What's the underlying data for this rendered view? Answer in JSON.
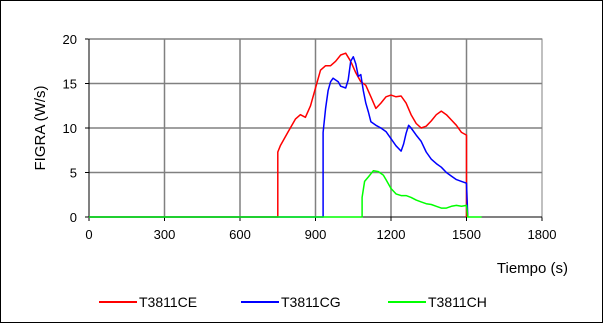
{
  "chart_data": {
    "type": "line",
    "xlabel": "Tiempo (s)",
    "ylabel": "FIGRA (W/s)",
    "xlim": [
      0,
      1800
    ],
    "ylim": [
      0,
      20
    ],
    "xticks": [
      0,
      300,
      600,
      900,
      1200,
      1500,
      1800
    ],
    "yticks": [
      0,
      5,
      10,
      15,
      20
    ],
    "grid": true,
    "legend_position": "bottom",
    "series": [
      {
        "name": "T3811CE",
        "color": "#ff0000",
        "x": [
          0,
          750,
          750,
          760,
          790,
          820,
          840,
          860,
          880,
          900,
          920,
          940,
          960,
          980,
          1000,
          1020,
          1040,
          1060,
          1080,
          1100,
          1120,
          1140,
          1160,
          1180,
          1200,
          1220,
          1240,
          1260,
          1280,
          1300,
          1320,
          1340,
          1360,
          1380,
          1400,
          1420,
          1440,
          1460,
          1480,
          1500,
          1500
        ],
        "y": [
          0,
          0,
          7.3,
          8,
          9.5,
          11,
          11.5,
          11.2,
          12.5,
          14.5,
          16.5,
          17,
          17,
          17.5,
          18.2,
          18.4,
          17.5,
          16.2,
          15.2,
          14.8,
          13.5,
          12.2,
          12.8,
          13.5,
          13.7,
          13.5,
          13.6,
          12.8,
          11.5,
          10.5,
          10,
          10.2,
          10.8,
          11.5,
          11.9,
          11.5,
          10.9,
          10.3,
          9.5,
          9.2,
          0
        ]
      },
      {
        "name": "T3811CG",
        "color": "#0000ff",
        "x": [
          0,
          930,
          930,
          940,
          950,
          960,
          970,
          990,
          1000,
          1020,
          1030,
          1040,
          1050,
          1060,
          1070,
          1080,
          1090,
          1100,
          1110,
          1120,
          1140,
          1160,
          1180,
          1200,
          1220,
          1240,
          1250,
          1260,
          1270,
          1280,
          1300,
          1320,
          1340,
          1360,
          1380,
          1400,
          1420,
          1440,
          1460,
          1480,
          1500,
          1505
        ],
        "y": [
          0,
          0,
          9.5,
          12.2,
          14.2,
          15.2,
          15.6,
          15.2,
          14.7,
          14.5,
          15.4,
          17.5,
          18,
          17.2,
          15.8,
          16,
          14.2,
          12.8,
          11.8,
          10.7,
          10.3,
          10,
          9.6,
          8.8,
          8,
          7.4,
          8.2,
          9.4,
          10.3,
          10,
          9.2,
          8.5,
          7.3,
          6.5,
          6,
          5.6,
          5,
          4.6,
          4.2,
          4,
          3.8,
          0
        ]
      },
      {
        "name": "T3811CH",
        "color": "#00ff00",
        "x": [
          0,
          1085,
          1085,
          1095,
          1110,
          1130,
          1150,
          1170,
          1180,
          1200,
          1220,
          1240,
          1260,
          1280,
          1300,
          1320,
          1340,
          1360,
          1380,
          1400,
          1420,
          1440,
          1460,
          1480,
          1500,
          1505,
          1560
        ],
        "y": [
          0,
          0,
          2.2,
          4,
          4.5,
          5.2,
          5.1,
          4.7,
          4.2,
          3.2,
          2.6,
          2.4,
          2.4,
          2.2,
          1.9,
          1.7,
          1.5,
          1.4,
          1.2,
          1,
          1,
          1.2,
          1.3,
          1.2,
          1.3,
          0,
          0
        ]
      }
    ]
  }
}
